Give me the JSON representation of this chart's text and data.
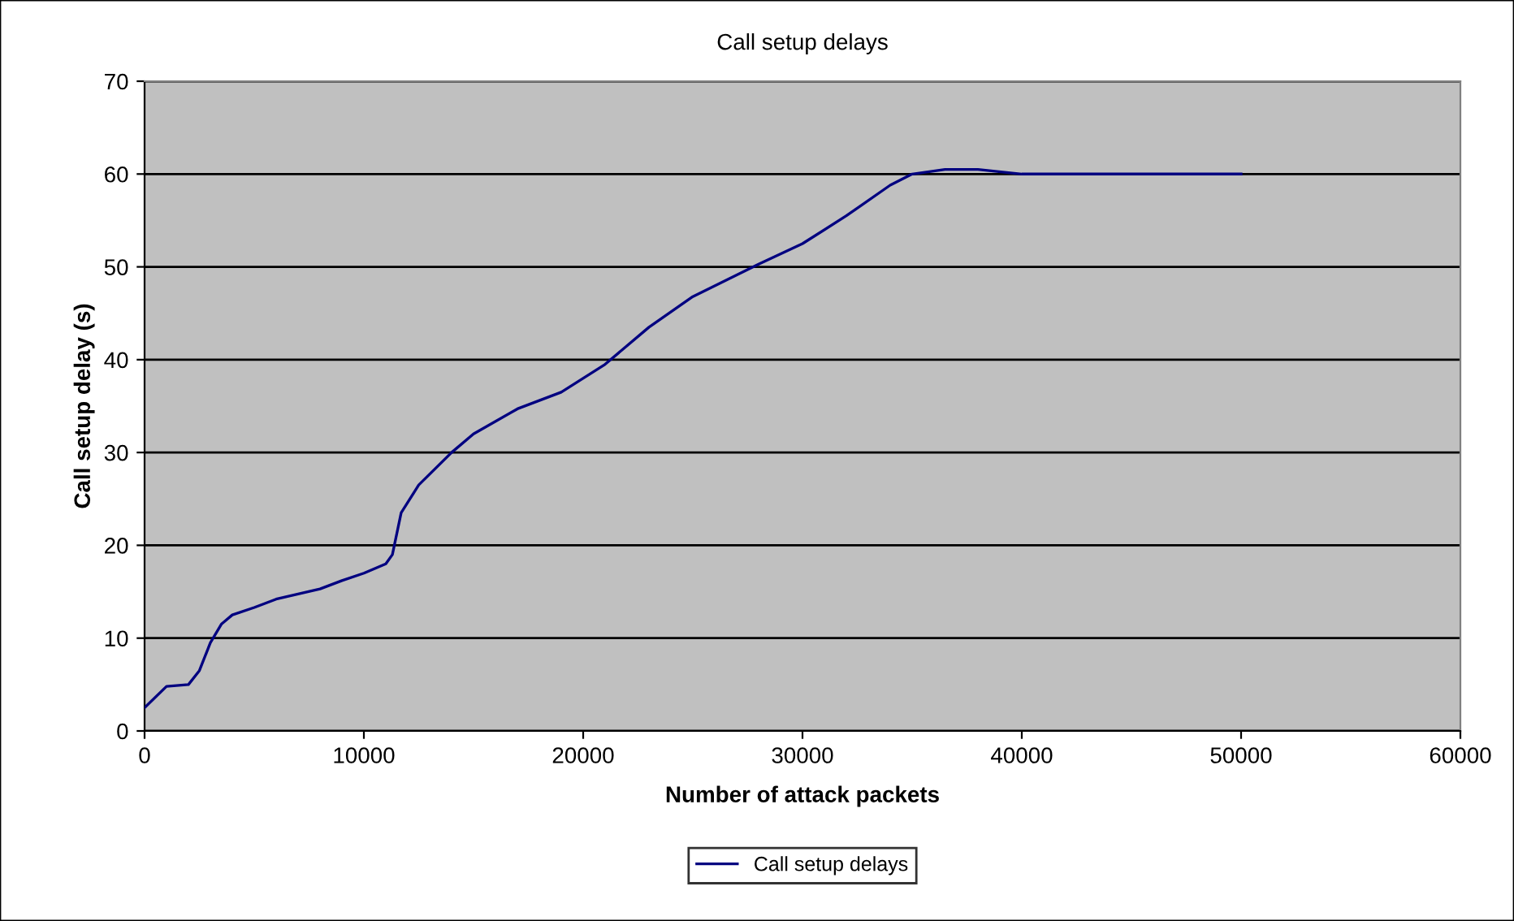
{
  "chart_data": {
    "type": "line",
    "title": "Call setup delays",
    "xlabel": "Number of attack packets",
    "ylabel": "Call setup delay (s)",
    "xlim": [
      0,
      60000
    ],
    "xticks": [
      0,
      10000,
      20000,
      30000,
      40000,
      50000,
      60000
    ],
    "ylim": [
      0,
      70
    ],
    "yticks": [
      0,
      10,
      20,
      30,
      40,
      50,
      60,
      70
    ],
    "grid": "y",
    "legend": "bottom",
    "marker": "none",
    "line_style": "solid",
    "series": [
      {
        "name": "Call setup delays",
        "color": "#000080",
        "x": [
          0,
          1000,
          2000,
          2500,
          3000,
          3500,
          4000,
          5000,
          6000,
          8000,
          9000,
          10000,
          11000,
          11300,
          11700,
          12500,
          14000,
          15000,
          17000,
          19000,
          21000,
          23000,
          25000,
          28000,
          30000,
          32000,
          34000,
          35000,
          36500,
          38000,
          40000,
          45000,
          50000
        ],
        "values": [
          2.5,
          4.8,
          5,
          6.5,
          9.5,
          11.5,
          12.5,
          13.3,
          14.2,
          15.3,
          16.2,
          17,
          18,
          19,
          23.5,
          26.5,
          30,
          32,
          34.7,
          36.5,
          39.5,
          43.5,
          46.8,
          50.3,
          52.5,
          55.5,
          58.8,
          60,
          60.5,
          60.5,
          60,
          60,
          60
        ]
      }
    ]
  }
}
